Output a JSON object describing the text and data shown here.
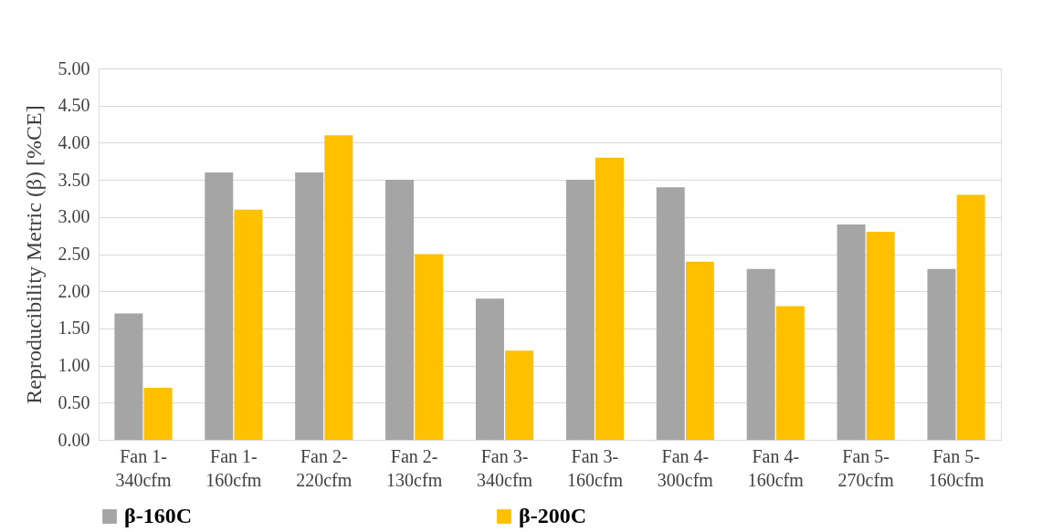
{
  "chart_data": {
    "type": "bar",
    "ylabel": "Reproducibility Metric (β) [%CE]",
    "categories": [
      "Fan 1-\n340cfm",
      "Fan 1-\n160cfm",
      "Fan 2-\n220cfm",
      "Fan 2-\n130cfm",
      "Fan 3-\n340cfm",
      "Fan 3-\n160cfm",
      "Fan 4-\n300cfm",
      "Fan 4-\n160cfm",
      "Fan 5-\n270cfm",
      "Fan 5-\n160cfm"
    ],
    "series": [
      {
        "name": "β-160C",
        "color": "#a5a5a5",
        "values": [
          1.7,
          3.6,
          3.6,
          3.5,
          1.9,
          3.5,
          3.4,
          2.3,
          2.9,
          2.3
        ]
      },
      {
        "name": "β-200C",
        "color": "#ffc000",
        "values": [
          0.7,
          3.1,
          4.1,
          2.5,
          1.2,
          3.8,
          2.4,
          1.8,
          2.8,
          3.3
        ]
      }
    ],
    "ylim": [
      0,
      5
    ],
    "yticks": [
      {
        "value": 0,
        "label": "0.00"
      },
      {
        "value": 0.5,
        "label": "0.50"
      },
      {
        "value": 1,
        "label": "1.00"
      },
      {
        "value": 1.5,
        "label": "1.50"
      },
      {
        "value": 2,
        "label": "2.00"
      },
      {
        "value": 2.5,
        "label": "2.50"
      },
      {
        "value": 3,
        "label": "3.00"
      },
      {
        "value": 3.5,
        "label": "3.50"
      },
      {
        "value": 4,
        "label": "4.00"
      },
      {
        "value": 4.5,
        "label": "4.50"
      },
      {
        "value": 5,
        "label": "5.00"
      }
    ],
    "grid": "y",
    "legend": "bottom"
  }
}
